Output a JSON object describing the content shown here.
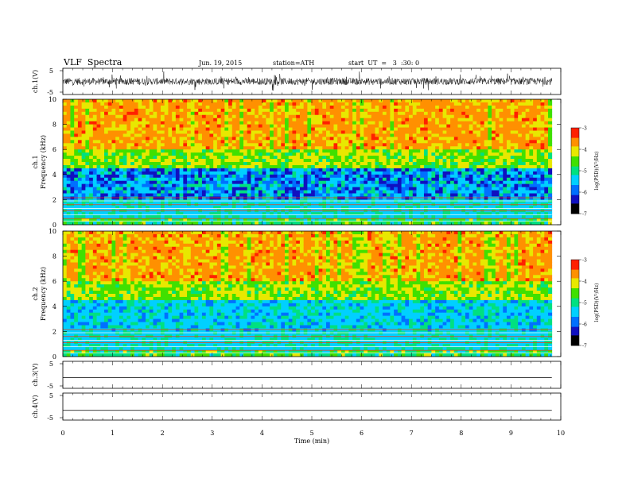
{
  "header": {
    "title": "VLF  Spectra",
    "date": "Jun. 19, 2015",
    "station": "station=ATH",
    "start": "start  UT  =   3  :30: 0"
  },
  "chart_data": [
    {
      "type": "line",
      "ylabel": "ch.1(V)",
      "ylim": [
        -5,
        5
      ],
      "yticks": [
        "5",
        "-5"
      ],
      "description_level": "dense noisy waveform centered near 0 V"
    },
    {
      "type": "heatmap",
      "channel_label": "ch.1",
      "ylabel": "Frequency  (kHz)",
      "ylim": [
        0,
        10
      ],
      "yticks": [
        "0",
        "2",
        "4",
        "6",
        "8",
        "10"
      ],
      "colorbar": {
        "label": "log(PSD)(V²/Hz)",
        "range": [
          -7,
          -3
        ],
        "ticks": [
          "-3",
          "-4",
          "-5",
          "-6",
          "-7"
        ]
      }
    },
    {
      "type": "heatmap",
      "channel_label": "ch.2",
      "ylabel": "Frequency  (kHz)",
      "ylim": [
        0,
        10
      ],
      "yticks": [
        "0",
        "2",
        "4",
        "6",
        "8",
        "10"
      ],
      "colorbar": {
        "label": "log(PSD)(V²/Hz)",
        "range": [
          -7,
          -3
        ],
        "ticks": [
          "-3",
          "-4",
          "-5",
          "-6",
          "-7"
        ]
      }
    },
    {
      "type": "line",
      "ylabel": "ch.3(V)",
      "ylim": [
        -5,
        5
      ],
      "yticks": [
        "5",
        "-5"
      ],
      "level": -1.2
    },
    {
      "type": "line",
      "ylabel": "ch.4(V)",
      "ylim": [
        -5,
        5
      ],
      "yticks": [
        "5",
        "-5"
      ],
      "level": -1.7
    }
  ],
  "xaxis": {
    "label": "Time  (min)",
    "ticks": [
      "0",
      "1",
      "2",
      "3",
      "4",
      "5",
      "6",
      "7",
      "8",
      "9",
      "10"
    ],
    "xlim": [
      0,
      10
    ],
    "data_end": 9.82
  },
  "colors": {
    "scale": [
      "#000000",
      "#1010c0",
      "#0070ff",
      "#00d0ff",
      "#00e080",
      "#40e000",
      "#e8e800",
      "#ff9000",
      "#ff2000",
      "#ffffff"
    ]
  }
}
